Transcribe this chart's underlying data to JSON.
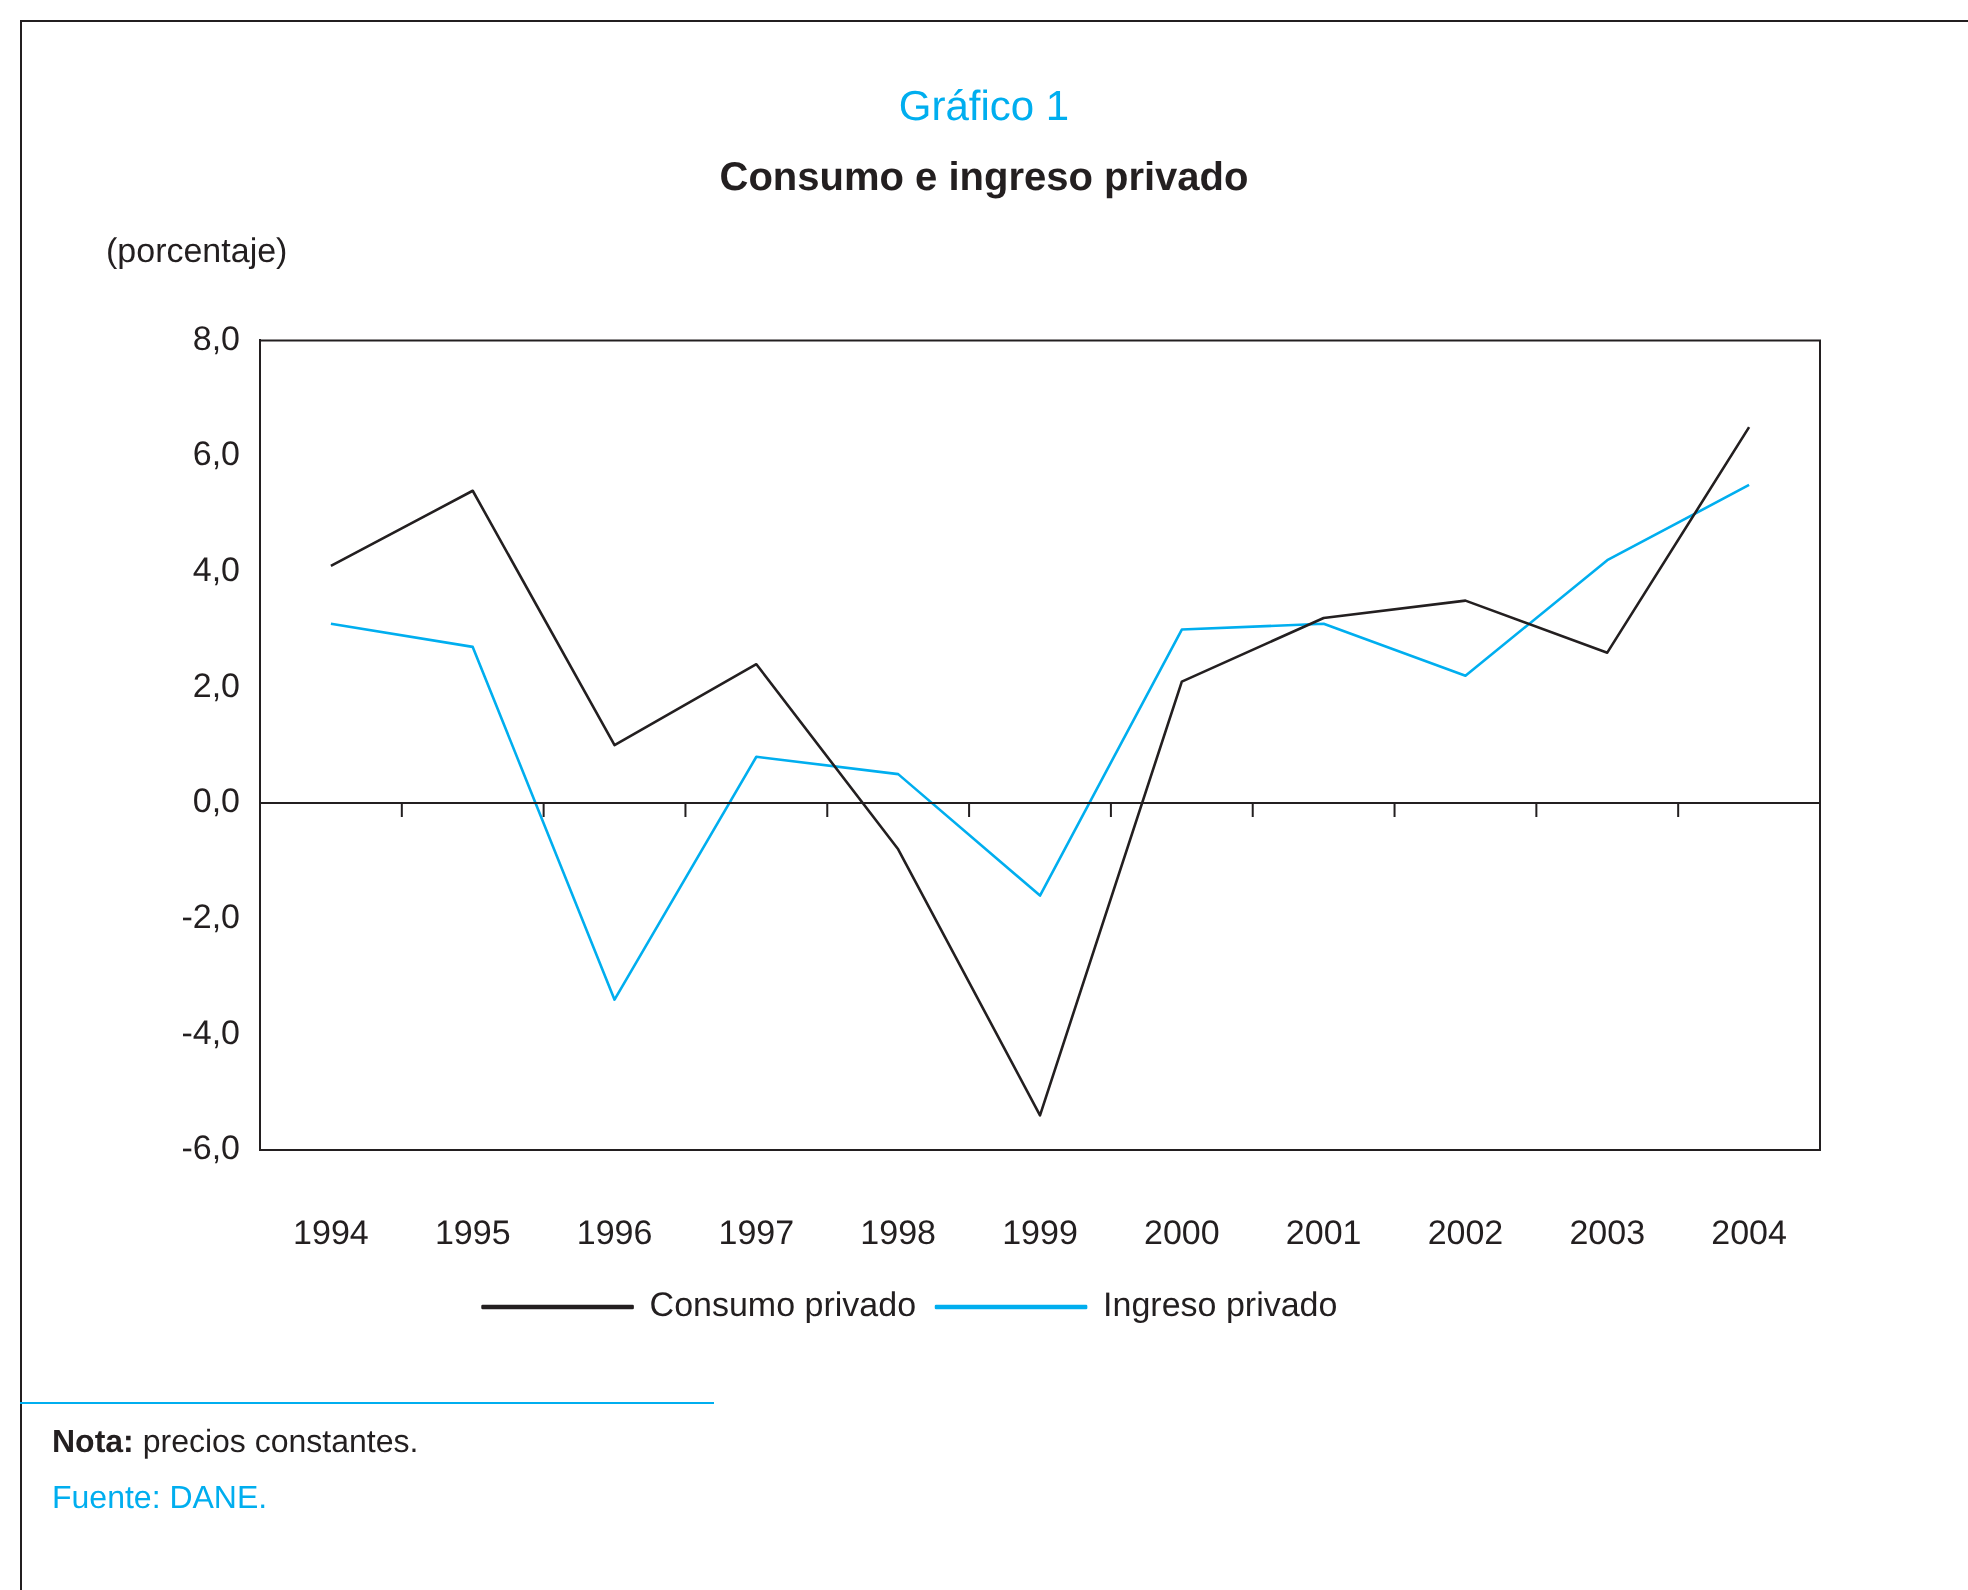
{
  "chart_data": {
    "type": "line",
    "title": "Gráfico 1",
    "subtitle": "Consumo e ingreso privado",
    "ylabel": "(porcentaje)",
    "categories": [
      "1994",
      "1995",
      "1996",
      "1997",
      "1998",
      "1999",
      "2000",
      "2001",
      "2002",
      "2003",
      "2004"
    ],
    "series": [
      {
        "name": "Consumo privado",
        "color": "#231f20",
        "values": [
          4.1,
          5.4,
          1.0,
          2.4,
          -0.8,
          -5.4,
          2.1,
          3.2,
          3.5,
          2.6,
          6.5
        ]
      },
      {
        "name": "Ingreso privado",
        "color": "#00aeef",
        "values": [
          3.1,
          2.7,
          -3.4,
          0.8,
          0.5,
          -1.6,
          3.0,
          3.1,
          2.2,
          4.2,
          5.5
        ]
      }
    ],
    "ylim": [
      -6,
      8
    ],
    "yticks": [
      {
        "value": -6,
        "label": "-6,0"
      },
      {
        "value": -4,
        "label": "-4,0"
      },
      {
        "value": -2,
        "label": "-2,0"
      },
      {
        "value": 0,
        "label": "0,0"
      },
      {
        "value": 2,
        "label": "2,0"
      },
      {
        "value": 4,
        "label": "4,0"
      },
      {
        "value": 6,
        "label": "6,0"
      },
      {
        "value": 8,
        "label": "8,0"
      }
    ],
    "ref_lines": [
      {
        "axis": "y",
        "value": 0,
        "color": "#231f20"
      }
    ],
    "grid": false,
    "legend": "bottom",
    "marker": "none",
    "line_style": "solid",
    "annotations": [
      "Nota: precios constantes.",
      "Fuente: DANE."
    ]
  }
}
